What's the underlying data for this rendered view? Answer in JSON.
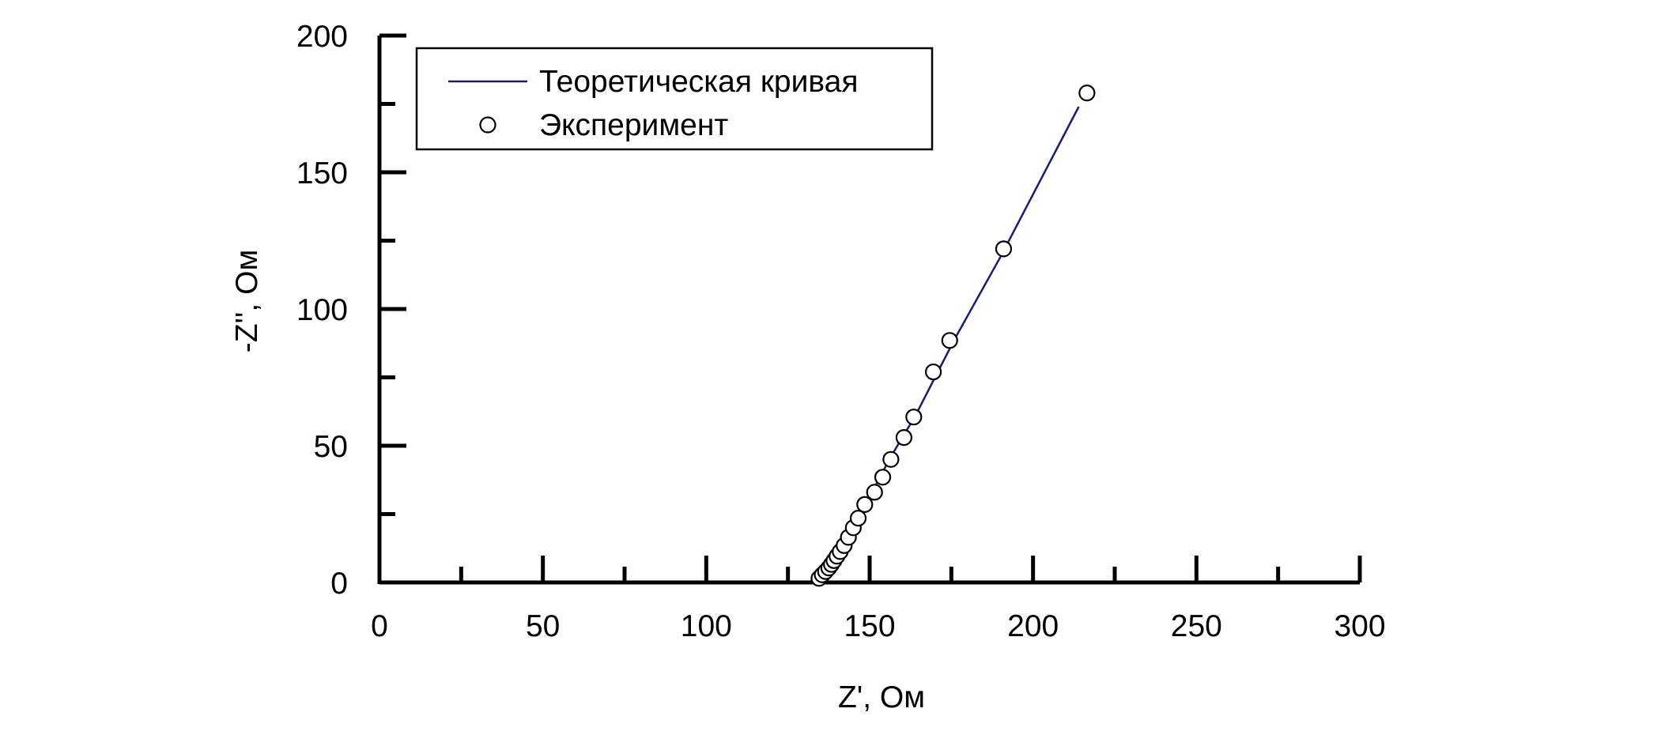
{
  "chart_data": {
    "type": "scatter",
    "xlabel": "Z', Ом",
    "ylabel": "-Z'', Ом",
    "xlim": [
      0,
      300
    ],
    "ylim": [
      0,
      200
    ],
    "x_ticks": [
      0,
      50,
      100,
      150,
      200,
      250,
      300
    ],
    "y_ticks": [
      0,
      50,
      100,
      150,
      200
    ],
    "x_minor_step": 25,
    "y_minor_step": 25,
    "grid": false,
    "legend_position": "top-left",
    "series": [
      {
        "name": "Теоретическая кривая",
        "kind": "line",
        "color": "#1a1a7a",
        "points": [
          [
            134.5,
            1.0
          ],
          [
            136,
            3
          ],
          [
            138,
            6
          ],
          [
            140,
            9.5
          ],
          [
            142,
            13.5
          ],
          [
            144,
            17.5
          ],
          [
            146,
            22
          ],
          [
            148,
            27
          ],
          [
            150,
            32
          ],
          [
            153,
            38
          ],
          [
            156,
            45
          ],
          [
            160,
            53
          ],
          [
            164,
            61
          ],
          [
            170,
            75
          ],
          [
            176,
            89
          ],
          [
            190,
            119
          ],
          [
            214,
            174
          ]
        ]
      },
      {
        "name": "Эксперимент",
        "kind": "scatter",
        "color": "#000000",
        "points": [
          [
            134.5,
            1.5
          ],
          [
            135.5,
            2.8
          ],
          [
            136.5,
            4.0
          ],
          [
            137.5,
            5.3
          ],
          [
            138.3,
            6.6
          ],
          [
            139.1,
            8.0
          ],
          [
            140.0,
            9.6
          ],
          [
            141.0,
            11.3
          ],
          [
            142.2,
            13.5
          ],
          [
            143.5,
            16.5
          ],
          [
            145.0,
            20.0
          ],
          [
            146.5,
            23.5
          ],
          [
            148.5,
            28.5
          ],
          [
            151.5,
            33.0
          ],
          [
            154.0,
            38.5
          ],
          [
            156.5,
            45.0
          ],
          [
            160.5,
            53.0
          ],
          [
            163.5,
            60.5
          ],
          [
            169.5,
            77.0
          ],
          [
            174.5,
            88.5
          ],
          [
            191.0,
            122.0
          ],
          [
            216.5,
            179.0
          ]
        ]
      }
    ]
  }
}
